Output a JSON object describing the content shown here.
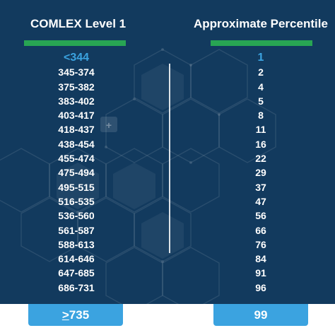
{
  "headers": {
    "left": "COMLEX Level 1",
    "right": "Approximate Percentile"
  },
  "rows": [
    {
      "score": "<344",
      "percentile": "1"
    },
    {
      "score": "345-374",
      "percentile": "2"
    },
    {
      "score": "375-382",
      "percentile": "4"
    },
    {
      "score": "383-402",
      "percentile": "5"
    },
    {
      "score": "403-417",
      "percentile": "8"
    },
    {
      "score": "418-437",
      "percentile": "11"
    },
    {
      "score": "438-454",
      "percentile": "16"
    },
    {
      "score": "455-474",
      "percentile": "22"
    },
    {
      "score": "475-494",
      "percentile": "29"
    },
    {
      "score": "495-515",
      "percentile": "37"
    },
    {
      "score": "516-535",
      "percentile": "47"
    },
    {
      "score": "536-560",
      "percentile": "56"
    },
    {
      "score": "561-587",
      "percentile": "66"
    },
    {
      "score": "588-613",
      "percentile": "76"
    },
    {
      "score": "614-646",
      "percentile": "84"
    },
    {
      "score": "647-685",
      "percentile": "91"
    },
    {
      "score": "686-731",
      "percentile": "96"
    }
  ],
  "footer": {
    "score_prefix": ">",
    "score_value": "735",
    "percentile": "99"
  },
  "colors": {
    "background": "#123a5e",
    "header_bar": "#28a553",
    "accent": "#3ba3e0",
    "text": "#ffffff"
  }
}
